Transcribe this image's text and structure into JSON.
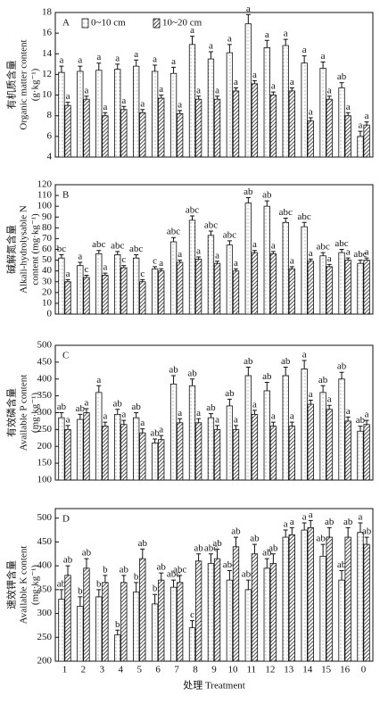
{
  "chart_data": [
    {
      "type": "bar",
      "panel": "A",
      "ylabel": [
        "有机质含量",
        "Organic matter content",
        "(g·kg⁻¹)"
      ],
      "ylim": [
        4,
        18
      ],
      "yticks": [
        4,
        6,
        8,
        10,
        12,
        14,
        16,
        18
      ],
      "legend": true,
      "series": [
        {
          "name": "0~10 cm",
          "color": "#ffffff",
          "pattern": "dots",
          "values": [
            12.2,
            12.3,
            12.4,
            12.5,
            12.8,
            12.3,
            12.1,
            14.9,
            13.5,
            14.1,
            16.9,
            14.6,
            14.8,
            13.1,
            12.6,
            10.7,
            6.0
          ],
          "errors": [
            0.6,
            0.5,
            0.7,
            0.5,
            0.6,
            0.6,
            0.6,
            0.8,
            0.7,
            0.8,
            0.9,
            0.7,
            0.6,
            0.7,
            0.6,
            0.5,
            0.5
          ],
          "letters": [
            "a",
            "a",
            "a",
            "a",
            "a",
            "a",
            "a",
            "a",
            "a",
            "a",
            "a",
            "a",
            "a",
            "a",
            "a",
            "ab",
            "a"
          ]
        },
        {
          "name": "10~20 cm",
          "color": "#222222",
          "pattern": "hatch",
          "values": [
            9.0,
            9.6,
            8.0,
            8.6,
            8.3,
            9.7,
            8.2,
            9.6,
            9.6,
            10.4,
            11.1,
            10.0,
            10.4,
            7.5,
            9.6,
            8.0,
            7.1
          ],
          "errors": [
            0.3,
            0.3,
            0.3,
            0.3,
            0.3,
            0.3,
            0.3,
            0.3,
            0.3,
            0.3,
            0.3,
            0.3,
            0.3,
            0.3,
            0.3,
            0.3,
            0.3
          ],
          "letters": [
            "a",
            "a",
            "a",
            "a",
            "a",
            "a",
            "a",
            "a",
            "a",
            "a",
            "a",
            "a",
            "a",
            "a",
            "a",
            "a",
            "a"
          ]
        }
      ]
    },
    {
      "type": "bar",
      "panel": "B",
      "ylabel": [
        "碱解氮含量",
        "Alkali-hydrolysable N",
        "content (mg·kg⁻¹)"
      ],
      "ylim": [
        0,
        120
      ],
      "yticks": [
        0,
        10,
        20,
        30,
        40,
        50,
        60,
        70,
        80,
        90,
        100,
        110,
        120
      ],
      "series": [
        {
          "color": "#ffffff",
          "pattern": "dots",
          "values": [
            52,
            45,
            56,
            55,
            52,
            42,
            67,
            87,
            73,
            64,
            103,
            100,
            85,
            81,
            54,
            57,
            47
          ],
          "errors": [
            3,
            3,
            3,
            3,
            3,
            2,
            4,
            4,
            4,
            4,
            5,
            5,
            4,
            4,
            3,
            3,
            3
          ],
          "letters": [
            "bc",
            "a",
            "abc",
            "abc",
            "abc",
            "c",
            "abc",
            "abc",
            "abc",
            "abc",
            "ab",
            "ab",
            "abc",
            "abc",
            "abc",
            "abc",
            "abc"
          ]
        },
        {
          "color": "#222222",
          "pattern": "hatch",
          "values": [
            30,
            34,
            36,
            43,
            30,
            40,
            48,
            51,
            47,
            40,
            57,
            56,
            42,
            49,
            44,
            50,
            50
          ],
          "errors": [
            2,
            2,
            2,
            2,
            2,
            2,
            2,
            2,
            2,
            2,
            2,
            2,
            2,
            2,
            2,
            2,
            2
          ],
          "letters": [
            "a",
            "c",
            "a",
            "c",
            "c",
            "a",
            "a",
            "a",
            "a",
            "a",
            "a",
            "a",
            "a",
            "a",
            "a",
            "a",
            "a"
          ]
        }
      ]
    },
    {
      "type": "bar",
      "panel": "C",
      "ylabel": [
        "有效磷含量",
        "Available P content",
        "(mg·kg⁻¹)"
      ],
      "ylim": [
        100,
        500
      ],
      "yticks": [
        100,
        150,
        200,
        250,
        300,
        350,
        400,
        450,
        500
      ],
      "series": [
        {
          "color": "#ffffff",
          "pattern": "dots",
          "values": [
            285,
            280,
            360,
            295,
            285,
            210,
            385,
            380,
            285,
            320,
            410,
            365,
            410,
            430,
            360,
            400,
            245
          ],
          "errors": [
            15,
            15,
            20,
            15,
            15,
            12,
            25,
            20,
            12,
            20,
            25,
            25,
            25,
            25,
            20,
            20,
            15
          ],
          "letters": [
            "ab",
            "ab",
            "a",
            "ab",
            "ab",
            "ab",
            "ab",
            "ab",
            "ab",
            "ab",
            "ab",
            "ab",
            "ab",
            "a",
            "ab",
            "ab",
            "ab"
          ]
        },
        {
          "color": "#222222",
          "pattern": "hatch",
          "values": [
            250,
            300,
            260,
            265,
            240,
            220,
            270,
            270,
            250,
            250,
            295,
            260,
            260,
            325,
            310,
            275,
            265
          ],
          "errors": [
            12,
            12,
            12,
            12,
            12,
            12,
            12,
            12,
            12,
            12,
            12,
            12,
            12,
            12,
            12,
            12,
            12
          ],
          "letters": [
            "a",
            "a",
            "a",
            "a",
            "a",
            "a",
            "a",
            "a",
            "a",
            "a",
            "a",
            "a",
            "a",
            "a",
            "a",
            "a",
            "a"
          ]
        }
      ]
    },
    {
      "type": "bar",
      "panel": "D",
      "ylabel": [
        "速效钾含量",
        "Available K content",
        "(mg·kg⁻¹)"
      ],
      "ylim": [
        200,
        520
      ],
      "yticks": [
        200,
        250,
        300,
        350,
        400,
        450,
        500
      ],
      "categories": [
        "1",
        "2",
        "3",
        "4",
        "5",
        "6",
        "7",
        "8",
        "9",
        "10",
        "11",
        "12",
        "13",
        "14",
        "15",
        "16",
        "0"
      ],
      "xlabel": "处理 Treatment",
      "series": [
        {
          "color": "#ffffff",
          "pattern": "dots",
          "values": [
            330,
            315,
            335,
            255,
            345,
            320,
            355,
            270,
            405,
            370,
            350,
            395,
            460,
            475,
            420,
            370,
            470
          ],
          "errors": [
            20,
            20,
            15,
            10,
            20,
            20,
            15,
            15,
            20,
            20,
            20,
            20,
            15,
            15,
            25,
            20,
            20
          ],
          "letters": [
            "ab",
            "b",
            "b",
            "b",
            "b",
            "b",
            "abc",
            "c",
            "abc",
            "abc",
            "abc",
            "ab",
            "a",
            "a",
            "abc",
            "ab",
            "a"
          ]
        },
        {
          "color": "#222222",
          "pattern": "hatch",
          "values": [
            380,
            395,
            365,
            365,
            415,
            370,
            365,
            410,
            415,
            440,
            425,
            405,
            465,
            480,
            460,
            460,
            445
          ],
          "errors": [
            20,
            20,
            15,
            15,
            20,
            15,
            15,
            15,
            20,
            20,
            20,
            20,
            15,
            15,
            20,
            20,
            15
          ],
          "letters": [
            "ab",
            "ab",
            "b",
            "ab",
            "ab",
            "ab",
            "abc",
            "ab",
            "ab",
            "ab",
            "ab",
            "ab",
            "a",
            "a",
            "ab",
            "ab",
            "ab"
          ]
        }
      ]
    }
  ]
}
